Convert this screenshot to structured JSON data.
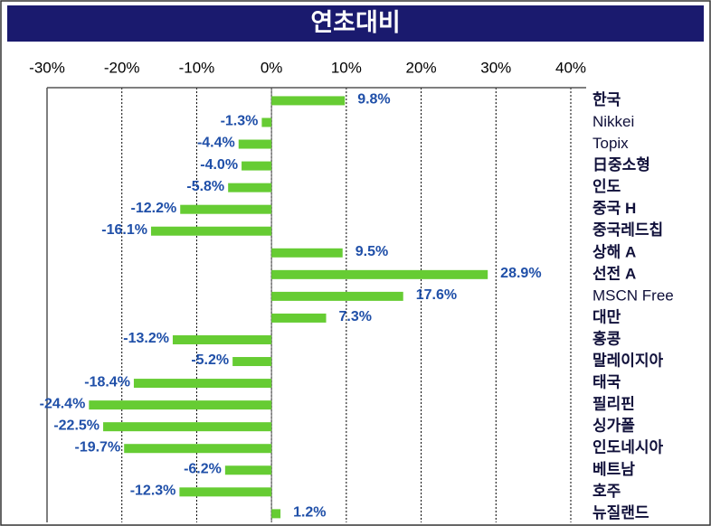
{
  "chart_data": {
    "type": "bar",
    "orientation": "horizontal",
    "title": "연초대비",
    "categories": [
      "한국",
      "Nikkei",
      "Topix",
      "日중소형",
      "인도",
      "중국 H",
      "중국레드칩",
      "상해 A",
      "선전 A",
      "MSCN Free",
      "대만",
      "홍콩",
      "말레이지아",
      "태국",
      "필리핀",
      "싱가폴",
      "인도네시아",
      "베트남",
      "호주",
      "뉴질랜드"
    ],
    "values": [
      9.8,
      -1.3,
      -4.4,
      -4.0,
      -5.8,
      -12.2,
      -16.1,
      9.5,
      28.9,
      17.6,
      7.3,
      -13.2,
      -5.2,
      -18.4,
      -24.4,
      -22.5,
      -19.7,
      -6.2,
      -12.3,
      1.2
    ],
    "value_labels": [
      "9.8%",
      "-1.3%",
      "-4.4%",
      "-4.0%",
      "-5.8%",
      "-12.2%",
      "-16.1%",
      "9.5%",
      "28.9%",
      "17.6%",
      "7.3%",
      "-13.2%",
      "-5.2%",
      "-18.4%",
      "-24.4%",
      "-22.5%",
      "-19.7%",
      "-6.2%",
      "-12.3%",
      "1.2%"
    ],
    "color": "#66cc33",
    "xlim": [
      -30,
      40
    ],
    "xticks": [
      {
        "value": -30,
        "label": "-30%"
      },
      {
        "value": -20,
        "label": "-20%"
      },
      {
        "value": -10,
        "label": "-10%"
      },
      {
        "value": 0,
        "label": "0%"
      },
      {
        "value": 10,
        "label": "10%"
      },
      {
        "value": 20,
        "label": "20%"
      },
      {
        "value": 30,
        "label": "30%"
      },
      {
        "value": 40,
        "label": "40%"
      }
    ],
    "grid": true
  }
}
